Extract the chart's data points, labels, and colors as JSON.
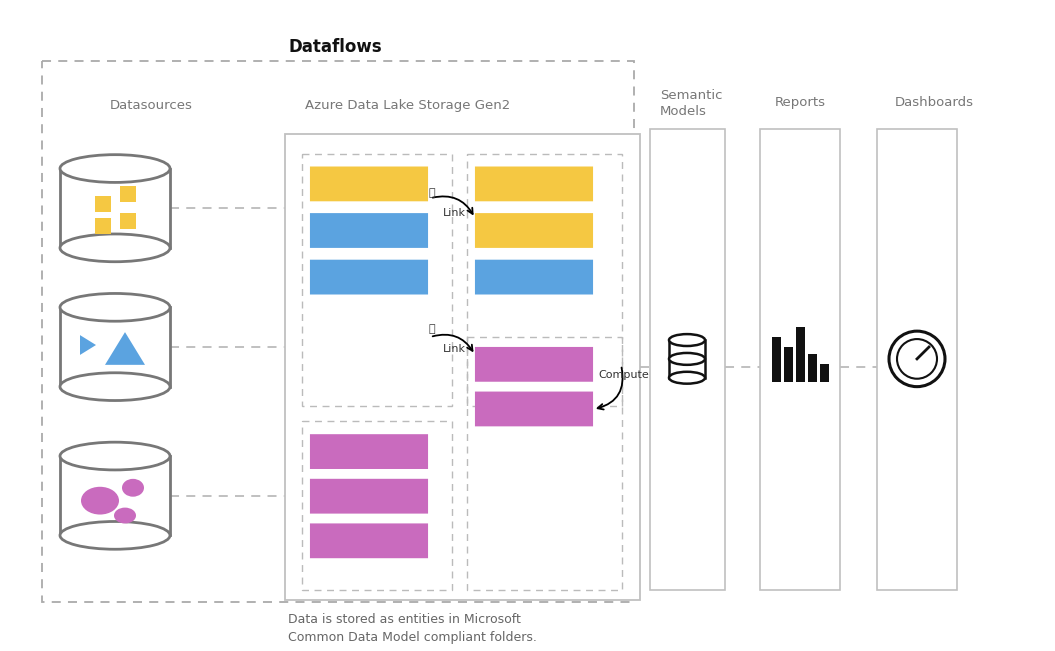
{
  "title": "Dataflows",
  "bg_color": "#ffffff",
  "datasources_label": "Datasources",
  "adls_label": "Azure Data Lake Storage Gen2",
  "semantic_label": "Semantic\nModels",
  "reports_label": "Reports",
  "dashboards_label": "Dashboards",
  "footnote": "Data is stored as entities in Microsoft\nCommon Data Model compliant folders.",
  "yellow": "#F5C842",
  "blue": "#5BA3E0",
  "pink": "#C96BBE",
  "gray_dark": "#666666",
  "gray_med": "#999999",
  "gray_light": "#bbbbbb"
}
